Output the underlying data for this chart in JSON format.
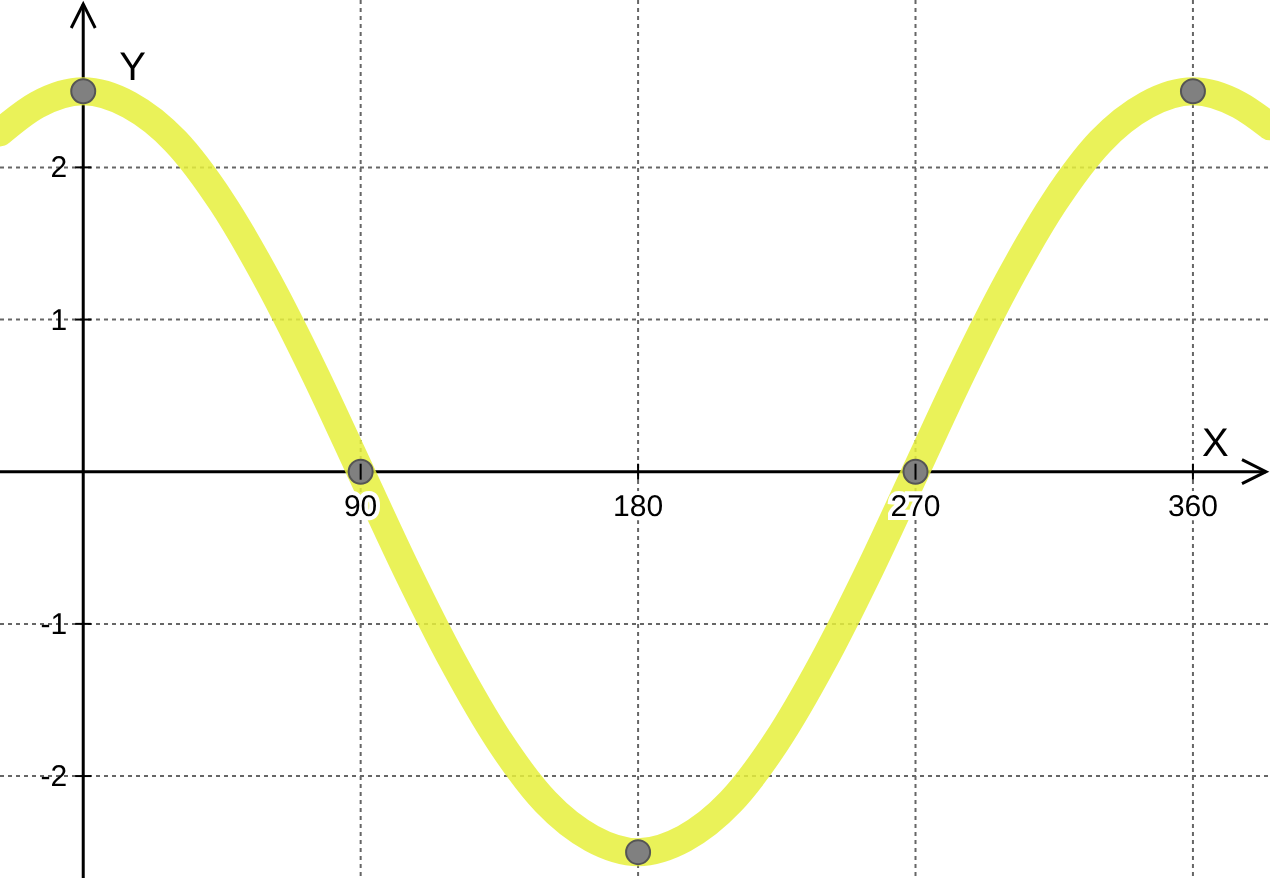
{
  "chart_data": {
    "type": "line",
    "xlabel": "X",
    "ylabel": "Y",
    "xlim": [
      -27,
      385
    ],
    "ylim": [
      -2.67,
      3.1
    ],
    "xticks": [
      90,
      180,
      270,
      360
    ],
    "yticks": [
      -2,
      -1,
      1,
      2
    ],
    "grid": true,
    "series": [
      {
        "color": "#e6f03c",
        "x": [
          -27,
          -15,
          0,
          15,
          30,
          45,
          60,
          75,
          90,
          105,
          120,
          135,
          150,
          165,
          180,
          195,
          210,
          225,
          240,
          255,
          270,
          285,
          300,
          315,
          330,
          345,
          360,
          375,
          385
        ],
        "values": [
          2.23,
          2.41,
          2.5,
          2.41,
          2.17,
          1.77,
          1.25,
          0.65,
          0,
          -0.65,
          -1.25,
          -1.77,
          -2.17,
          -2.41,
          -2.5,
          -2.41,
          -2.17,
          -1.77,
          -1.25,
          -0.65,
          0,
          0.65,
          1.25,
          1.77,
          2.17,
          2.41,
          2.5,
          2.41,
          2.27
        ]
      },
      {
        "type": "scatter",
        "color": "#808080",
        "marker": "circle",
        "x": [
          0,
          90,
          180,
          270,
          360
        ],
        "values": [
          2.5,
          0,
          -2.5,
          0,
          2.5
        ]
      }
    ]
  }
}
